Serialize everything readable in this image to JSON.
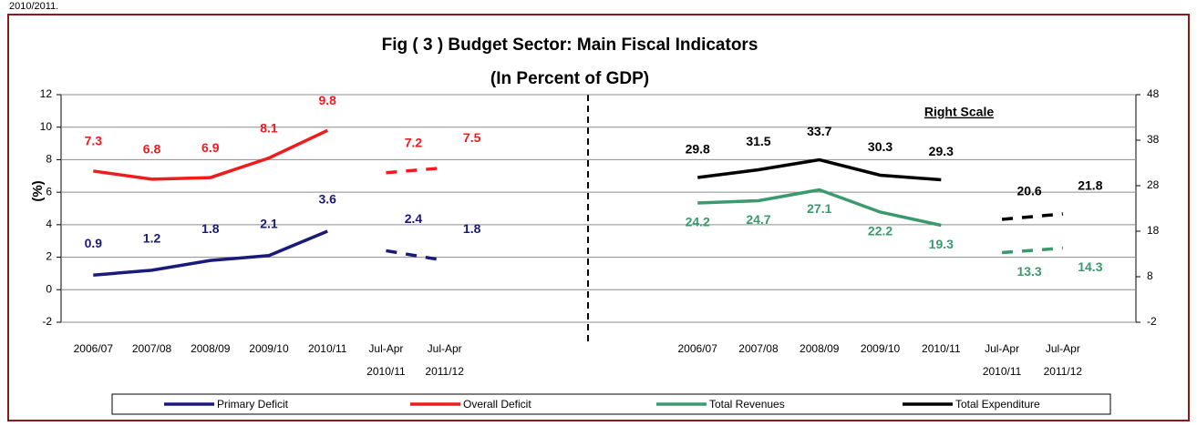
{
  "header_note": "2010/2011.",
  "chart_data": {
    "type": "line",
    "title": "Fig ( 3 ) Budget Sector: Main Fiscal Indicators",
    "subtitle": "(In Percent of GDP)",
    "y_label": "(%)",
    "annotation": "Right Scale",
    "categories": [
      [
        "2006/07"
      ],
      [
        "2007/08"
      ],
      [
        "2008/09"
      ],
      [
        "2009/10"
      ],
      [
        "2010/11"
      ],
      [
        "Jul-Apr",
        "2010/11"
      ],
      [
        "Jul-Apr",
        "2011/12"
      ]
    ],
    "ylim": [
      -2,
      12
    ],
    "yticks": [
      -2,
      0,
      2,
      4,
      6,
      8,
      10,
      12
    ],
    "y2lim": [
      -2,
      48
    ],
    "y2ticks": [
      -2,
      8,
      18,
      28,
      38,
      48
    ],
    "grid": true,
    "legend": "bottom",
    "series": [
      {
        "name": "Primary Deficit",
        "color": "#1a1a7a",
        "values": [
          0.9,
          1.2,
          1.8,
          2.1,
          3.6,
          2.4,
          1.8
        ]
      },
      {
        "name": "Overall Deficit",
        "color": "#ee1c1c",
        "values": [
          7.3,
          6.8,
          6.9,
          8.1,
          9.8,
          7.2,
          7.5
        ]
      },
      {
        "name": "Total Revenues",
        "color": "#3a9a6e",
        "axis": "y2",
        "values": [
          24.2,
          24.7,
          27.1,
          22.2,
          19.3,
          13.3,
          14.3
        ]
      },
      {
        "name": "Total Expenditure",
        "color": "#000000",
        "axis": "y2",
        "values": [
          29.8,
          31.5,
          33.7,
          30.3,
          29.3,
          20.6,
          21.8
        ]
      }
    ]
  }
}
